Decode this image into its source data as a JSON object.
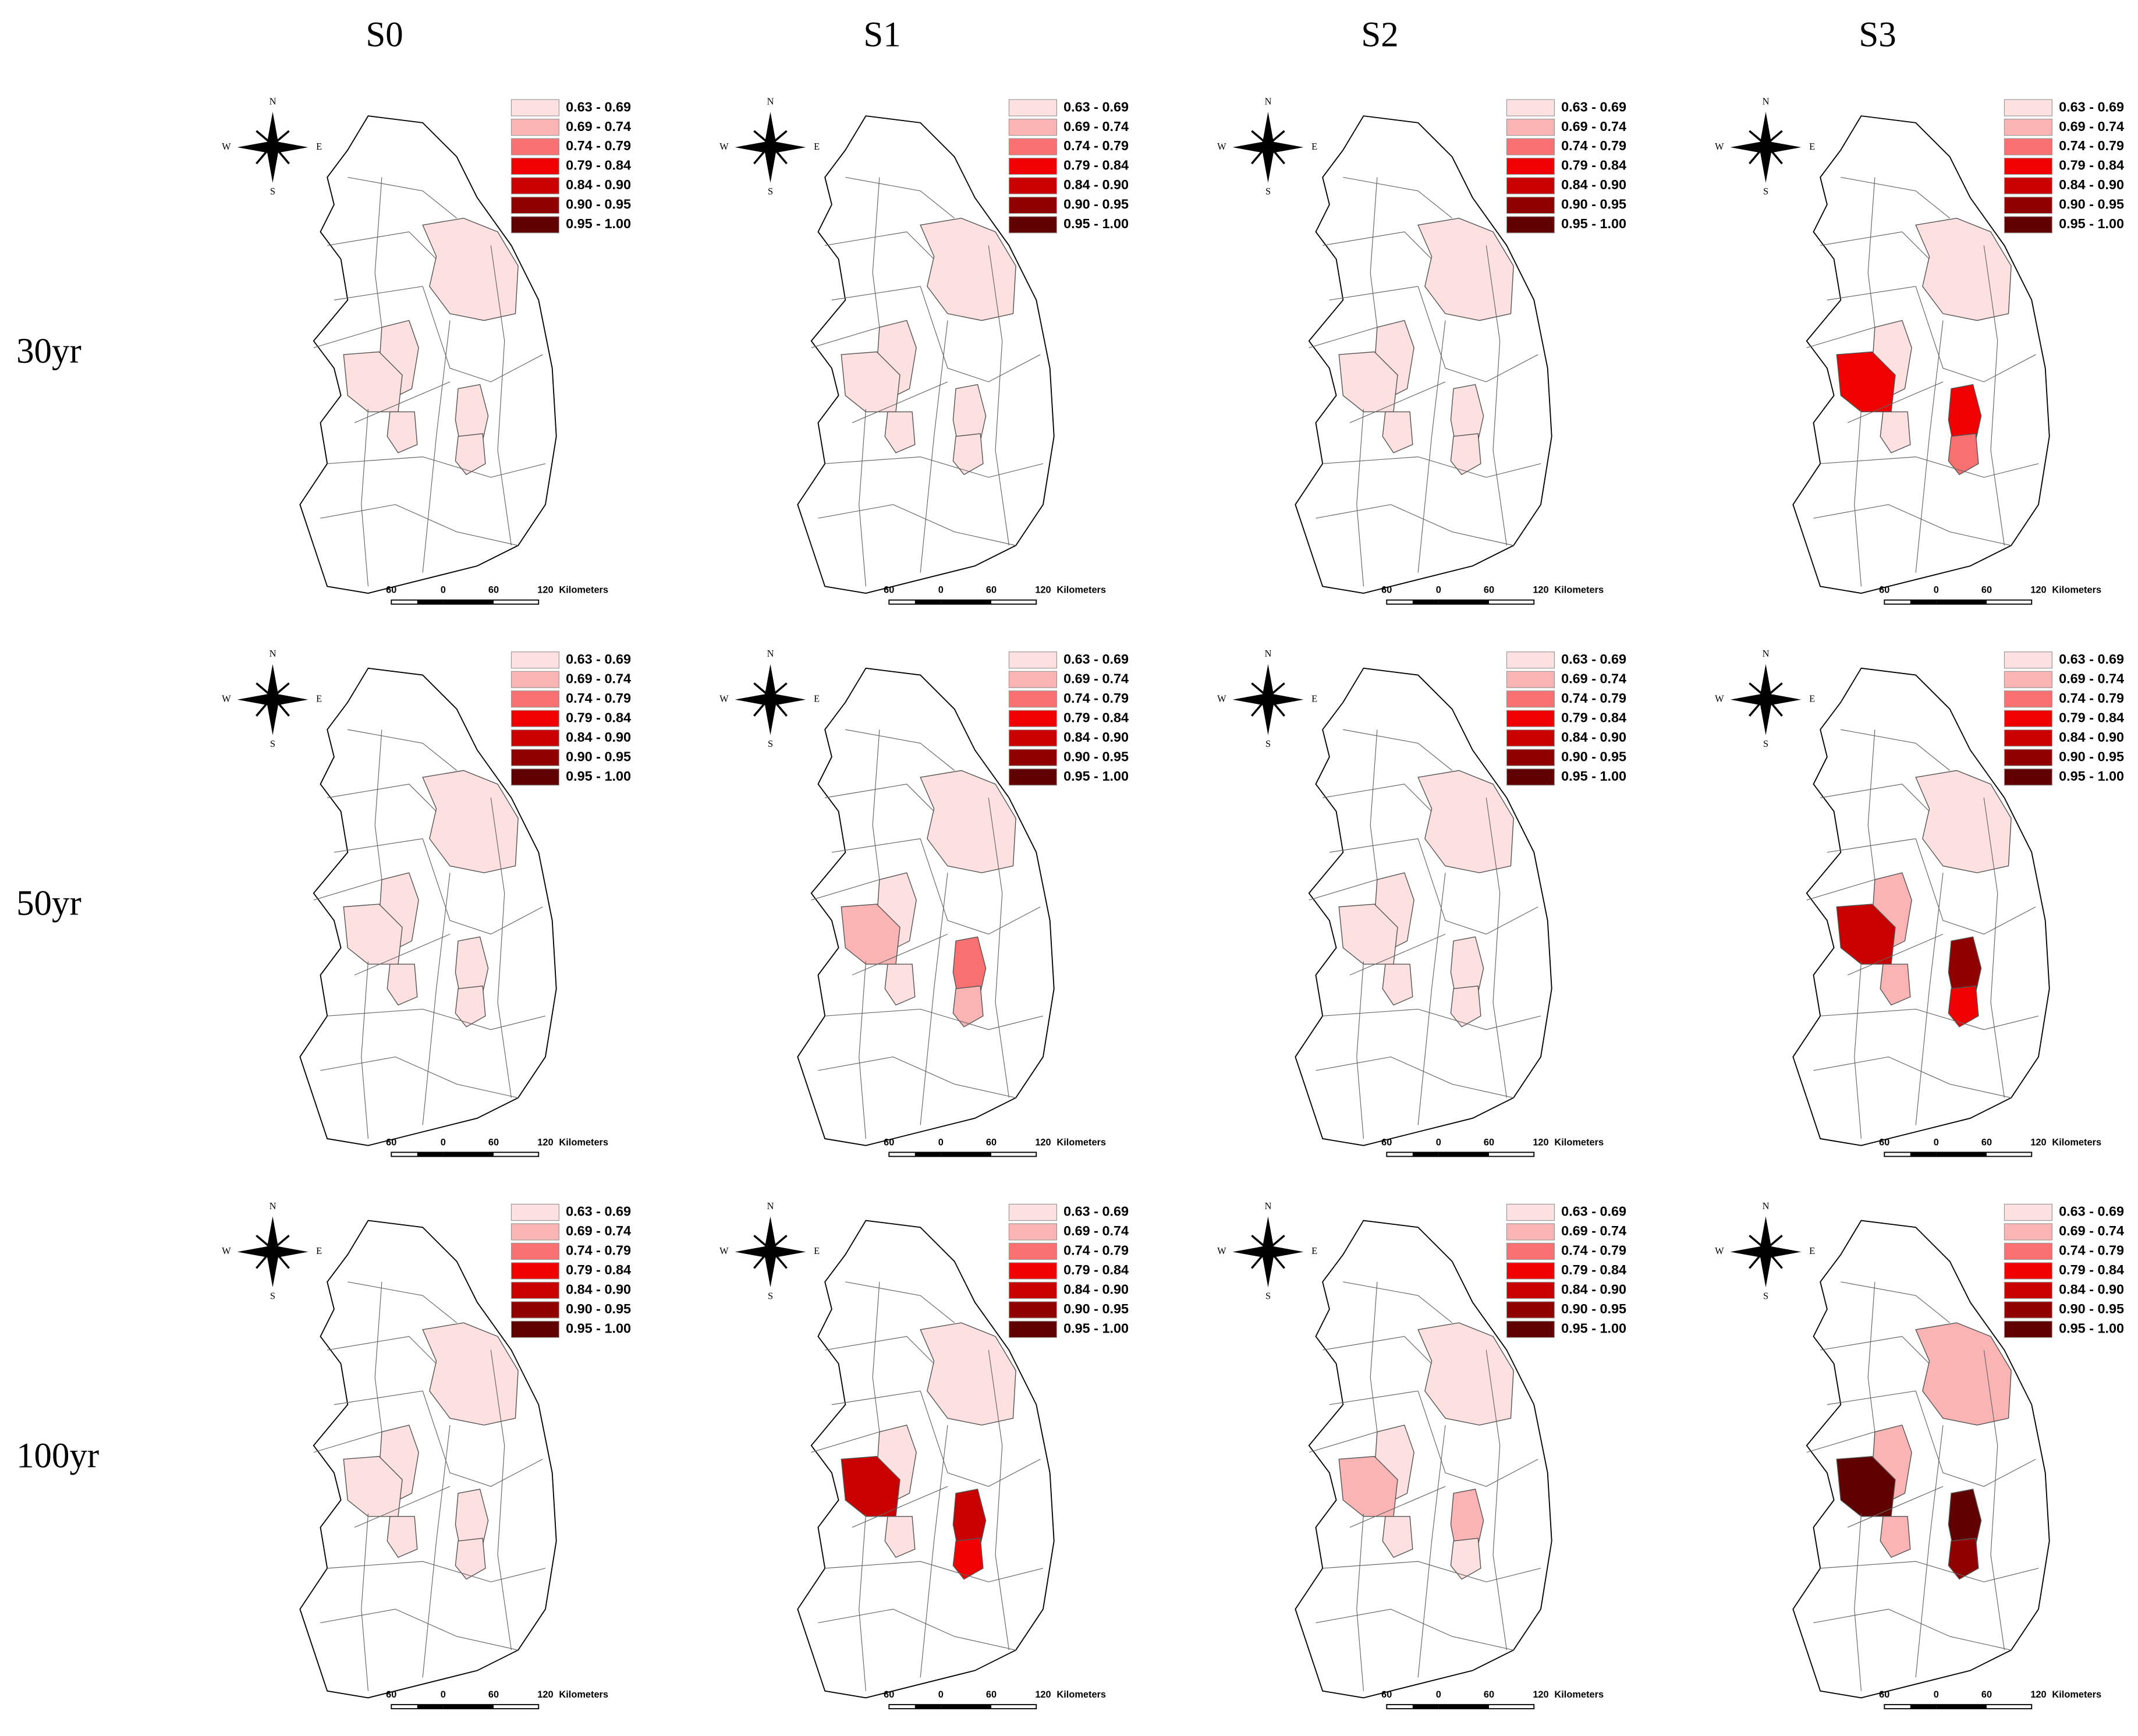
{
  "columns": [
    "S0",
    "S1",
    "S2",
    "S3"
  ],
  "rows": [
    "30yr",
    "50yr",
    "100yr"
  ],
  "legend": [
    {
      "label": "0.63 - 0.69",
      "color": "#fde0e0"
    },
    {
      "label": "0.69 - 0.74",
      "color": "#fbb4b4"
    },
    {
      "label": "0.74 - 0.79",
      "color": "#f87070"
    },
    {
      "label": "0.79 - 0.84",
      "color": "#f00000"
    },
    {
      "label": "0.84 - 0.90",
      "color": "#c80000"
    },
    {
      "label": "0.90 - 0.95",
      "color": "#900000"
    },
    {
      "label": "0.95 - 1.00",
      "color": "#600000"
    }
  ],
  "compass": {
    "n": "N",
    "s": "S",
    "e": "E",
    "w": "W"
  },
  "scale_bar": {
    "ticks": [
      "60",
      "0",
      "60",
      "120"
    ],
    "unit": "Kilometers"
  },
  "panels": [
    [
      {
        "fills": [
          "#fde0e0",
          "#fde0e0",
          "#fde0e0",
          "#fde0e0",
          "#fde0e0",
          "#fde0e0"
        ]
      },
      {
        "fills": [
          "#fde0e0",
          "#fde0e0",
          "#fde0e0",
          "#fde0e0",
          "#fde0e0",
          "#fde0e0"
        ]
      },
      {
        "fills": [
          "#fde0e0",
          "#fde0e0",
          "#fde0e0",
          "#fde0e0",
          "#fde0e0",
          "#fde0e0"
        ]
      },
      {
        "fills": [
          "#fde0e0",
          "#fde0e0",
          "#f00000",
          "#f00000",
          "#f87070",
          "#fde0e0"
        ]
      }
    ],
    [
      {
        "fills": [
          "#fde0e0",
          "#fde0e0",
          "#fde0e0",
          "#fde0e0",
          "#fde0e0",
          "#fde0e0"
        ]
      },
      {
        "fills": [
          "#fde0e0",
          "#fde0e0",
          "#fbb4b4",
          "#f87070",
          "#fbb4b4",
          "#fde0e0"
        ]
      },
      {
        "fills": [
          "#fde0e0",
          "#fde0e0",
          "#fde0e0",
          "#fde0e0",
          "#fde0e0",
          "#fde0e0"
        ]
      },
      {
        "fills": [
          "#fde0e0",
          "#fbb4b4",
          "#c80000",
          "#900000",
          "#f00000",
          "#fbb4b4"
        ]
      }
    ],
    [
      {
        "fills": [
          "#fde0e0",
          "#fde0e0",
          "#fde0e0",
          "#fde0e0",
          "#fde0e0",
          "#fde0e0"
        ]
      },
      {
        "fills": [
          "#fde0e0",
          "#fde0e0",
          "#c80000",
          "#c80000",
          "#f00000",
          "#fde0e0"
        ]
      },
      {
        "fills": [
          "#fde0e0",
          "#fde0e0",
          "#fbb4b4",
          "#fbb4b4",
          "#fde0e0",
          "#fde0e0"
        ]
      },
      {
        "fills": [
          "#fbb4b4",
          "#fbb4b4",
          "#600000",
          "#600000",
          "#900000",
          "#fbb4b4"
        ]
      }
    ]
  ]
}
